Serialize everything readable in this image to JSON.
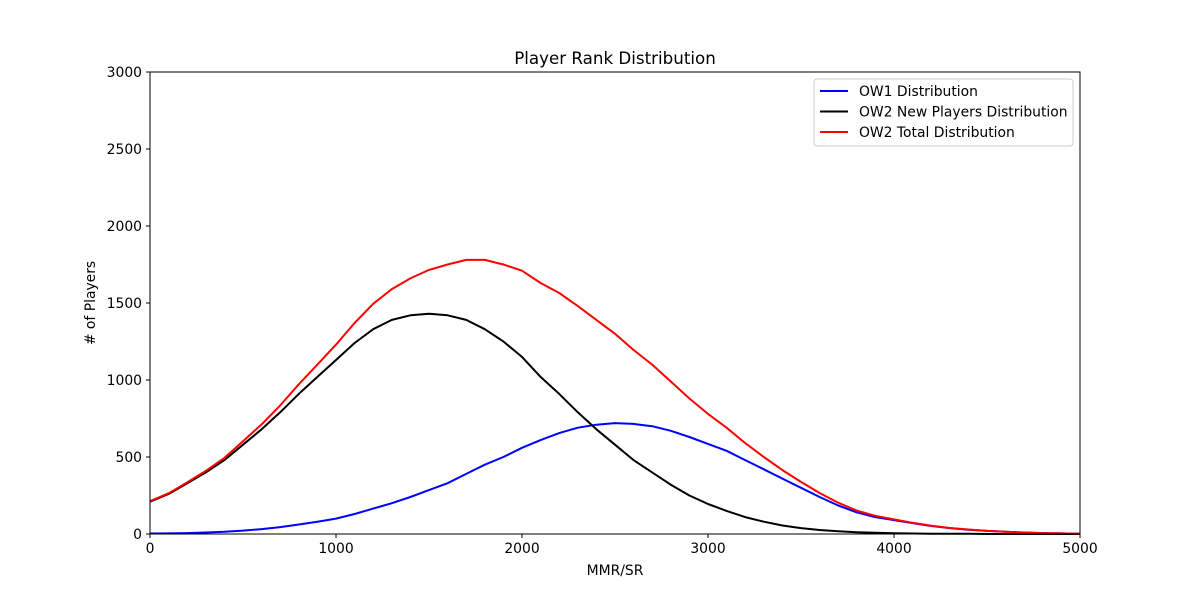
{
  "chart_data": {
    "type": "line",
    "title": "Player Rank Distribution",
    "xlabel": "MMR/SR",
    "ylabel": "# of Players",
    "xlim": [
      0,
      5000
    ],
    "ylim": [
      0,
      3000
    ],
    "xticks": [
      "0",
      "1000",
      "2000",
      "3000",
      "4000",
      "5000"
    ],
    "yticks": [
      "0",
      "500",
      "1000",
      "1500",
      "2000",
      "2500",
      "3000"
    ],
    "grid": false,
    "legend_position": "top-right",
    "series": [
      {
        "name": "OW1 Distribution",
        "color": "#0000ff",
        "x": [
          0,
          100,
          200,
          300,
          400,
          500,
          600,
          700,
          800,
          900,
          1000,
          1100,
          1200,
          1300,
          1400,
          1500,
          1600,
          1700,
          1800,
          1900,
          2000,
          2100,
          2200,
          2300,
          2400,
          2500,
          2600,
          2700,
          2800,
          2900,
          3000,
          3100,
          3200,
          3300,
          3400,
          3500,
          3600,
          3700,
          3800,
          3900,
          4000,
          4100,
          4200,
          4300,
          4400,
          4500,
          4600,
          4700,
          4800,
          4900,
          5000
        ],
        "y": [
          3,
          4,
          6,
          10,
          14,
          22,
          32,
          45,
          62,
          80,
          100,
          130,
          165,
          200,
          240,
          285,
          330,
          390,
          450,
          500,
          560,
          610,
          655,
          690,
          710,
          720,
          715,
          700,
          670,
          630,
          585,
          540,
          480,
          420,
          360,
          300,
          240,
          185,
          140,
          110,
          90,
          70,
          52,
          38,
          28,
          20,
          14,
          10,
          6,
          4,
          2
        ]
      },
      {
        "name": "OW2 New Players Distribution",
        "color": "#000000",
        "x": [
          0,
          100,
          200,
          300,
          400,
          500,
          600,
          700,
          800,
          900,
          1000,
          1100,
          1200,
          1300,
          1400,
          1500,
          1600,
          1700,
          1800,
          1900,
          2000,
          2100,
          2200,
          2300,
          2400,
          2500,
          2600,
          2700,
          2800,
          2900,
          3000,
          3100,
          3200,
          3300,
          3400,
          3500,
          3600,
          3700,
          3800,
          3900,
          4000,
          4100,
          4200,
          4300,
          4400,
          4500,
          4600,
          4700,
          4800,
          4900,
          5000
        ],
        "y": [
          210,
          260,
          330,
          400,
          480,
          580,
          680,
          790,
          910,
          1020,
          1130,
          1240,
          1330,
          1390,
          1420,
          1430,
          1420,
          1390,
          1330,
          1250,
          1150,
          1020,
          910,
          790,
          680,
          580,
          480,
          400,
          320,
          250,
          195,
          150,
          110,
          80,
          55,
          38,
          26,
          18,
          12,
          8,
          5,
          3,
          2,
          1,
          1,
          0,
          0,
          0,
          0,
          0,
          0
        ]
      },
      {
        "name": "OW2 Total Distribution",
        "color": "#ff0000",
        "x": [
          0,
          100,
          200,
          300,
          400,
          500,
          600,
          700,
          800,
          900,
          1000,
          1100,
          1200,
          1300,
          1400,
          1500,
          1600,
          1700,
          1800,
          1900,
          2000,
          2100,
          2200,
          2300,
          2400,
          2500,
          2600,
          2700,
          2800,
          2900,
          3000,
          3100,
          3200,
          3300,
          3400,
          3500,
          3600,
          3700,
          3800,
          3900,
          4000,
          4100,
          4200,
          4300,
          4400,
          4500,
          4600,
          4700,
          4800,
          4900,
          5000
        ],
        "y": [
          213,
          264,
          336,
          410,
          494,
          602,
          712,
          835,
          972,
          1100,
          1230,
          1370,
          1495,
          1590,
          1660,
          1715,
          1750,
          1780,
          1780,
          1750,
          1710,
          1630,
          1565,
          1480,
          1390,
          1300,
          1195,
          1100,
          990,
          880,
          780,
          690,
          590,
          500,
          415,
          338,
          266,
          203,
          152,
          118,
          95,
          73,
          54,
          39,
          29,
          20,
          14,
          10,
          6,
          4,
          2
        ]
      }
    ]
  }
}
